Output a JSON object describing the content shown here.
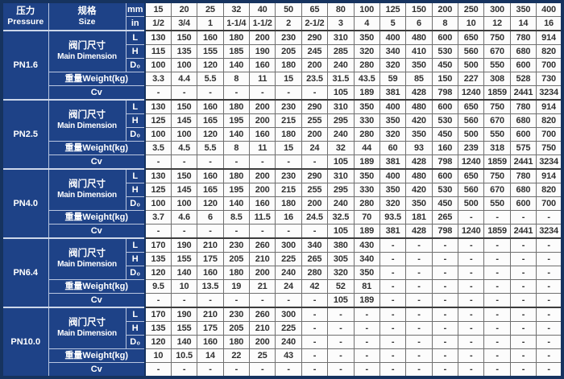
{
  "colors": {
    "header_blue": "#1e4287",
    "outer_border": "#16335f",
    "grid_line": "#6f6f6f",
    "blue_divider": "#b9c6e0",
    "data_text": "#303030"
  },
  "header": {
    "pressure_zh": "压力",
    "pressure_en": "Pressure",
    "size_zh": "规格",
    "size_en": "Size",
    "unit_mm": "mm",
    "unit_in": "in",
    "sizes_mm": [
      "15",
      "20",
      "25",
      "32",
      "40",
      "50",
      "65",
      "80",
      "100",
      "125",
      "150",
      "200",
      "250",
      "300",
      "350",
      "400"
    ],
    "sizes_in": [
      "1/2",
      "3/4",
      "1",
      "1-1/4",
      "1-1/2",
      "2",
      "2-1/2",
      "3",
      "4",
      "5",
      "6",
      "8",
      "10",
      "12",
      "14",
      "16"
    ]
  },
  "labels": {
    "dimension_zh": "阀门尺寸",
    "dimension_en": "Main Dimension",
    "dim_rows": [
      "L",
      "H",
      "D₀"
    ],
    "weight": "重量Weight(kg)",
    "cv": "Cv"
  },
  "sections": [
    {
      "pressure": "PN1.6",
      "L": [
        "130",
        "150",
        "160",
        "180",
        "200",
        "230",
        "290",
        "310",
        "350",
        "400",
        "480",
        "600",
        "650",
        "750",
        "780",
        "914"
      ],
      "H": [
        "115",
        "135",
        "155",
        "185",
        "190",
        "205",
        "245",
        "285",
        "320",
        "340",
        "410",
        "530",
        "560",
        "670",
        "680",
        "820"
      ],
      "D0": [
        "100",
        "100",
        "120",
        "140",
        "160",
        "180",
        "200",
        "240",
        "280",
        "320",
        "350",
        "450",
        "500",
        "550",
        "600",
        "700"
      ],
      "weight": [
        "3.3",
        "4.4",
        "5.5",
        "8",
        "11",
        "15",
        "23.5",
        "31.5",
        "43.5",
        "59",
        "85",
        "150",
        "227",
        "308",
        "528",
        "730"
      ],
      "cv": [
        "-",
        "-",
        "-",
        "-",
        "-",
        "-",
        "-",
        "105",
        "189",
        "381",
        "428",
        "798",
        "1240",
        "1859",
        "2441",
        "3234"
      ]
    },
    {
      "pressure": "PN2.5",
      "L": [
        "130",
        "150",
        "160",
        "180",
        "200",
        "230",
        "290",
        "310",
        "350",
        "400",
        "480",
        "600",
        "650",
        "750",
        "780",
        "914"
      ],
      "H": [
        "125",
        "145",
        "165",
        "195",
        "200",
        "215",
        "255",
        "295",
        "330",
        "350",
        "420",
        "530",
        "560",
        "670",
        "680",
        "820"
      ],
      "D0": [
        "100",
        "100",
        "120",
        "140",
        "160",
        "180",
        "200",
        "240",
        "280",
        "320",
        "350",
        "450",
        "500",
        "550",
        "600",
        "700"
      ],
      "weight": [
        "3.5",
        "4.5",
        "5.5",
        "8",
        "11",
        "15",
        "24",
        "32",
        "44",
        "60",
        "93",
        "160",
        "239",
        "318",
        "575",
        "750"
      ],
      "cv": [
        "-",
        "-",
        "-",
        "-",
        "-",
        "-",
        "-",
        "105",
        "189",
        "381",
        "428",
        "798",
        "1240",
        "1859",
        "2441",
        "3234"
      ]
    },
    {
      "pressure": "PN4.0",
      "L": [
        "130",
        "150",
        "160",
        "180",
        "200",
        "230",
        "290",
        "310",
        "350",
        "400",
        "480",
        "600",
        "650",
        "750",
        "780",
        "914"
      ],
      "H": [
        "125",
        "145",
        "165",
        "195",
        "200",
        "215",
        "255",
        "295",
        "330",
        "350",
        "420",
        "530",
        "560",
        "670",
        "680",
        "820"
      ],
      "D0": [
        "100",
        "100",
        "120",
        "140",
        "160",
        "180",
        "200",
        "240",
        "280",
        "320",
        "350",
        "450",
        "500",
        "550",
        "600",
        "700"
      ],
      "weight": [
        "3.7",
        "4.6",
        "6",
        "8.5",
        "11.5",
        "16",
        "24.5",
        "32.5",
        "70",
        "93.5",
        "181",
        "265",
        "-",
        "-",
        "-",
        "-"
      ],
      "cv": [
        "-",
        "-",
        "-",
        "-",
        "-",
        "-",
        "-",
        "105",
        "189",
        "381",
        "428",
        "798",
        "1240",
        "1859",
        "2441",
        "3234"
      ]
    },
    {
      "pressure": "PN6.4",
      "L": [
        "170",
        "190",
        "210",
        "230",
        "260",
        "300",
        "340",
        "380",
        "430",
        "-",
        "-",
        "-",
        "-",
        "-",
        "-",
        "-"
      ],
      "H": [
        "135",
        "155",
        "175",
        "205",
        "210",
        "225",
        "265",
        "305",
        "340",
        "-",
        "-",
        "-",
        "-",
        "-",
        "-",
        "-"
      ],
      "D0": [
        "120",
        "140",
        "160",
        "180",
        "200",
        "240",
        "280",
        "320",
        "350",
        "-",
        "-",
        "-",
        "-",
        "-",
        "-",
        "-"
      ],
      "weight": [
        "9.5",
        "10",
        "13.5",
        "19",
        "21",
        "24",
        "42",
        "52",
        "81",
        "-",
        "-",
        "-",
        "-",
        "-",
        "-",
        "-"
      ],
      "cv": [
        "-",
        "-",
        "-",
        "-",
        "-",
        "-",
        "-",
        "105",
        "189",
        "-",
        "-",
        "-",
        "-",
        "-",
        "-",
        "-"
      ]
    },
    {
      "pressure": "PN10.0",
      "L": [
        "170",
        "190",
        "210",
        "230",
        "260",
        "300",
        "-",
        "-",
        "-",
        "-",
        "-",
        "-",
        "-",
        "-",
        "-",
        "-"
      ],
      "H": [
        "135",
        "155",
        "175",
        "205",
        "210",
        "225",
        "-",
        "-",
        "-",
        "-",
        "-",
        "-",
        "-",
        "-",
        "-",
        "-"
      ],
      "D0": [
        "120",
        "140",
        "160",
        "180",
        "200",
        "240",
        "-",
        "-",
        "-",
        "-",
        "-",
        "-",
        "-",
        "-",
        "-",
        "-"
      ],
      "weight": [
        "10",
        "10.5",
        "14",
        "22",
        "25",
        "43",
        "-",
        "-",
        "-",
        "-",
        "-",
        "-",
        "-",
        "-",
        "-",
        "-"
      ],
      "cv": [
        "-",
        "-",
        "-",
        "-",
        "-",
        "-",
        "-",
        "-",
        "-",
        "-",
        "-",
        "-",
        "-",
        "-",
        "-",
        "-"
      ]
    }
  ]
}
